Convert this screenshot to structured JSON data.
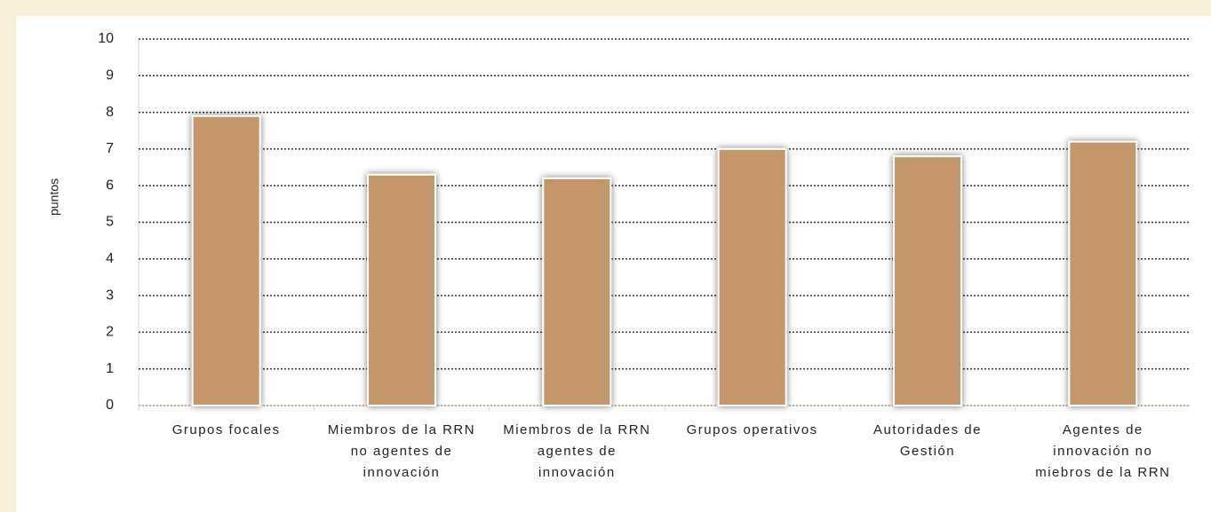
{
  "chart_data": {
    "type": "bar",
    "ylabel": "puntos",
    "categories": [
      "Grupos focales",
      "Miembros de la RRN no agentes de innovación",
      "Miembros de la RRN agentes de innovación",
      "Grupos operativos",
      "Autoridades de Gestión",
      "Agentes de innovación no miebros de la RRN"
    ],
    "values": [
      7.9,
      6.3,
      6.2,
      7.0,
      6.8,
      7.2
    ],
    "color": "#c4976b",
    "ylim": [
      0,
      10
    ],
    "yticks": [
      0,
      1,
      2,
      3,
      4,
      5,
      6,
      7,
      8,
      9,
      10
    ],
    "grid": true
  }
}
